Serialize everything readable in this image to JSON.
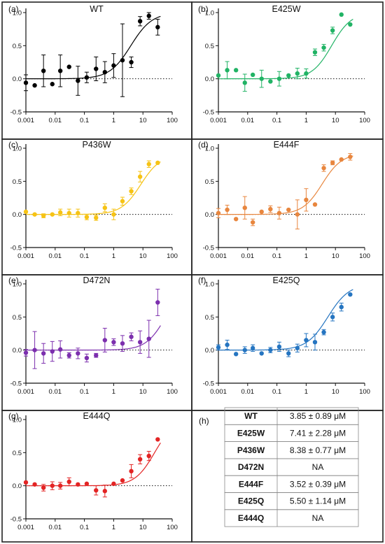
{
  "chart_data": [
    {
      "type": "scatter",
      "panel": "(a)",
      "title": "WT",
      "color": "#000000",
      "x": [
        0.001,
        0.002,
        0.004,
        0.008,
        0.015,
        0.03,
        0.06,
        0.12,
        0.25,
        0.5,
        1.0,
        2.0,
        4.0,
        8.0,
        16.0,
        32.0
      ],
      "y": [
        -0.06,
        -0.1,
        0.12,
        -0.08,
        0.12,
        0.18,
        -0.03,
        0.02,
        0.15,
        0.1,
        0.2,
        0.28,
        0.25,
        0.87,
        0.95,
        0.78
      ],
      "err": [
        0.12,
        0.0,
        0.24,
        0.0,
        0.24,
        0.0,
        0.22,
        0.08,
        0.18,
        0.16,
        0.18,
        0.55,
        0.08,
        0.07,
        0.05,
        0.12
      ],
      "fit": {
        "bottom": 0.0,
        "top": 1.0,
        "ec50": 3.85,
        "hill": 1.2
      },
      "xticks": [
        "0.001",
        "0.01",
        "0.1",
        "1",
        "10",
        "100"
      ],
      "yticks": [
        "-0.5",
        "0.0",
        "0.5",
        "1.0"
      ],
      "ylim": [
        -0.5,
        1.0
      ],
      "xscale": "log"
    },
    {
      "type": "scatter",
      "panel": "(b)",
      "title": "E425W",
      "color": "#21b365",
      "x": [
        0.001,
        0.002,
        0.004,
        0.008,
        0.015,
        0.03,
        0.06,
        0.12,
        0.25,
        0.5,
        1.0,
        2.0,
        4.0,
        8.0,
        16.0,
        32.0
      ],
      "y": [
        0.05,
        0.13,
        0.13,
        -0.06,
        0.06,
        0.0,
        -0.04,
        0.0,
        0.05,
        0.08,
        0.08,
        0.4,
        0.47,
        0.73,
        0.97,
        0.82
      ],
      "err": [
        0.0,
        0.13,
        0.0,
        0.13,
        0.0,
        0.13,
        0.0,
        0.11,
        0.0,
        0.08,
        0.07,
        0.05,
        0.05,
        0.05,
        0.0,
        0.0
      ],
      "fit": {
        "bottom": 0.0,
        "top": 1.0,
        "ec50": 7.41,
        "hill": 1.3
      },
      "xticks": [
        "0.001",
        "0.01",
        "0.1",
        "1",
        "10",
        "100"
      ],
      "yticks": [
        "-0.5",
        "0.0",
        "0.5",
        "1.0"
      ],
      "ylim": [
        -0.5,
        1.0
      ],
      "xscale": "log"
    },
    {
      "type": "scatter",
      "panel": "(c)",
      "title": "P436W",
      "color": "#f6c315",
      "x": [
        0.001,
        0.002,
        0.004,
        0.008,
        0.015,
        0.03,
        0.06,
        0.12,
        0.25,
        0.5,
        1.0,
        2.0,
        4.0,
        8.0,
        16.0,
        32.0
      ],
      "y": [
        0.04,
        0.0,
        -0.02,
        0.0,
        0.03,
        0.02,
        0.02,
        -0.04,
        -0.05,
        0.1,
        0.0,
        0.2,
        0.35,
        0.57,
        0.76,
        0.78
      ],
      "err": [
        0.0,
        0.0,
        0.03,
        0.0,
        0.05,
        0.06,
        0.06,
        0.04,
        0.04,
        0.06,
        0.08,
        0.06,
        0.05,
        0.08,
        0.05,
        0.0
      ],
      "fit": {
        "bottom": 0.0,
        "top": 0.9,
        "ec50": 8.38,
        "hill": 1.3
      },
      "xticks": [
        "0.001",
        "0.01",
        "0.1",
        "1",
        "10",
        "100"
      ],
      "yticks": [
        "-0.5",
        "0.0",
        "0.5",
        "1.0"
      ],
      "ylim": [
        -0.5,
        1.0
      ],
      "xscale": "log"
    },
    {
      "type": "scatter",
      "panel": "(d)",
      "title": "E444F",
      "color": "#e8863e",
      "x": [
        0.001,
        0.002,
        0.004,
        0.008,
        0.015,
        0.03,
        0.06,
        0.12,
        0.25,
        0.5,
        1.0,
        2.0,
        4.0,
        8.0,
        16.0,
        32.0
      ],
      "y": [
        0.02,
        0.07,
        -0.07,
        0.1,
        -0.12,
        0.04,
        0.08,
        0.02,
        0.07,
        0.0,
        0.22,
        0.15,
        0.7,
        0.78,
        0.83,
        0.87
      ],
      "err": [
        0.07,
        0.07,
        0.0,
        0.17,
        0.05,
        0.0,
        0.05,
        0.09,
        0.0,
        0.22,
        0.17,
        0.0,
        0.05,
        0.03,
        0.0,
        0.05
      ],
      "fit": {
        "bottom": 0.0,
        "top": 0.92,
        "ec50": 3.52,
        "hill": 1.3
      },
      "xticks": [
        "0.001",
        "0.01",
        "0.1",
        "1",
        "10",
        "100"
      ],
      "yticks": [
        "-0.5",
        "0.0",
        "0.5",
        "1.0"
      ],
      "ylim": [
        -0.5,
        1.0
      ],
      "xscale": "log"
    },
    {
      "type": "scatter",
      "panel": "(e)",
      "title": "D472N",
      "color": "#7c2fae",
      "x": [
        0.001,
        0.002,
        0.004,
        0.008,
        0.015,
        0.03,
        0.06,
        0.12,
        0.25,
        0.5,
        1.0,
        2.0,
        4.0,
        8.0,
        16.0,
        32.0
      ],
      "y": [
        -0.04,
        0.0,
        -0.05,
        -0.02,
        0.01,
        -0.08,
        -0.05,
        -0.12,
        -0.08,
        0.15,
        0.12,
        0.1,
        0.2,
        0.12,
        0.17,
        0.72
      ],
      "err": [
        0.05,
        0.28,
        0.15,
        0.15,
        0.13,
        0.04,
        0.08,
        0.06,
        0.03,
        0.18,
        0.05,
        0.12,
        0.06,
        0.17,
        0.28,
        0.2
      ],
      "fit": {
        "bottom": 0.0,
        "top": 1.0,
        "ec50": 60.0,
        "hill": 1.3
      },
      "xticks": [
        "0.001",
        "0.01",
        "0.1",
        "1",
        "10",
        "100"
      ],
      "yticks": [
        "-0.5",
        "0.0",
        "0.5",
        "1.0"
      ],
      "ylim": [
        -0.5,
        1.0
      ],
      "xscale": "log"
    },
    {
      "type": "scatter",
      "panel": "(f)",
      "title": "E425Q",
      "color": "#2575c1",
      "x": [
        0.001,
        0.002,
        0.004,
        0.008,
        0.015,
        0.03,
        0.06,
        0.12,
        0.25,
        0.5,
        1.0,
        2.0,
        4.0,
        8.0,
        16.0,
        32.0
      ],
      "y": [
        0.04,
        0.08,
        -0.06,
        0.0,
        0.03,
        -0.05,
        0.0,
        0.05,
        -0.05,
        0.03,
        0.15,
        0.12,
        0.27,
        0.5,
        0.65,
        0.84
      ],
      "err": [
        0.04,
        0.07,
        0.0,
        0.05,
        0.05,
        0.0,
        0.04,
        0.07,
        0.05,
        0.06,
        0.1,
        0.12,
        0.04,
        0.06,
        0.06,
        0.0
      ],
      "fit": {
        "bottom": 0.0,
        "top": 1.0,
        "ec50": 5.5,
        "hill": 1.2
      },
      "xticks": [
        "0.001",
        "0.01",
        "0.1",
        "1",
        "10",
        "100"
      ],
      "yticks": [
        "-0.5",
        "0.0",
        "0.5",
        "1.0"
      ],
      "ylim": [
        -0.5,
        1.0
      ],
      "xscale": "log"
    },
    {
      "type": "scatter",
      "panel": "(g)",
      "title": "E444Q",
      "color": "#e32424",
      "x": [
        0.001,
        0.002,
        0.004,
        0.008,
        0.015,
        0.03,
        0.06,
        0.12,
        0.25,
        0.5,
        1.0,
        2.0,
        4.0,
        8.0,
        16.0,
        32.0
      ],
      "y": [
        0.05,
        0.02,
        -0.03,
        0.0,
        0.0,
        0.06,
        0.02,
        0.03,
        -0.07,
        -0.08,
        0.03,
        0.08,
        0.22,
        0.4,
        0.45,
        0.7
      ],
      "err": [
        0.0,
        0.0,
        0.05,
        0.06,
        0.05,
        0.06,
        0.0,
        0.0,
        0.07,
        0.09,
        0.0,
        0.0,
        0.1,
        0.07,
        0.07,
        0.0
      ],
      "fit": {
        "bottom": 0.0,
        "top": 1.0,
        "ec50": 25.0,
        "hill": 1.3
      },
      "xticks": [
        "0.001",
        "0.01",
        "0.1",
        "1",
        "10",
        "100"
      ],
      "yticks": [
        "-0.5",
        "0.0",
        "0.5",
        "1.0"
      ],
      "ylim": [
        -0.5,
        1.0
      ],
      "xscale": "log"
    },
    {
      "type": "table",
      "panel": "(h)",
      "rows": [
        [
          "WT",
          "3.85 ± 0.89 μM"
        ],
        [
          "E425W",
          "7.41 ± 2.28 μM"
        ],
        [
          "P436W",
          "8.38 ± 0.77 μM"
        ],
        [
          "D472N",
          "NA"
        ],
        [
          "E444F",
          "3.52 ± 0.39 μM"
        ],
        [
          "E425Q",
          "5.50 ± 1.14 μM"
        ],
        [
          "E444Q",
          "NA"
        ]
      ]
    }
  ]
}
